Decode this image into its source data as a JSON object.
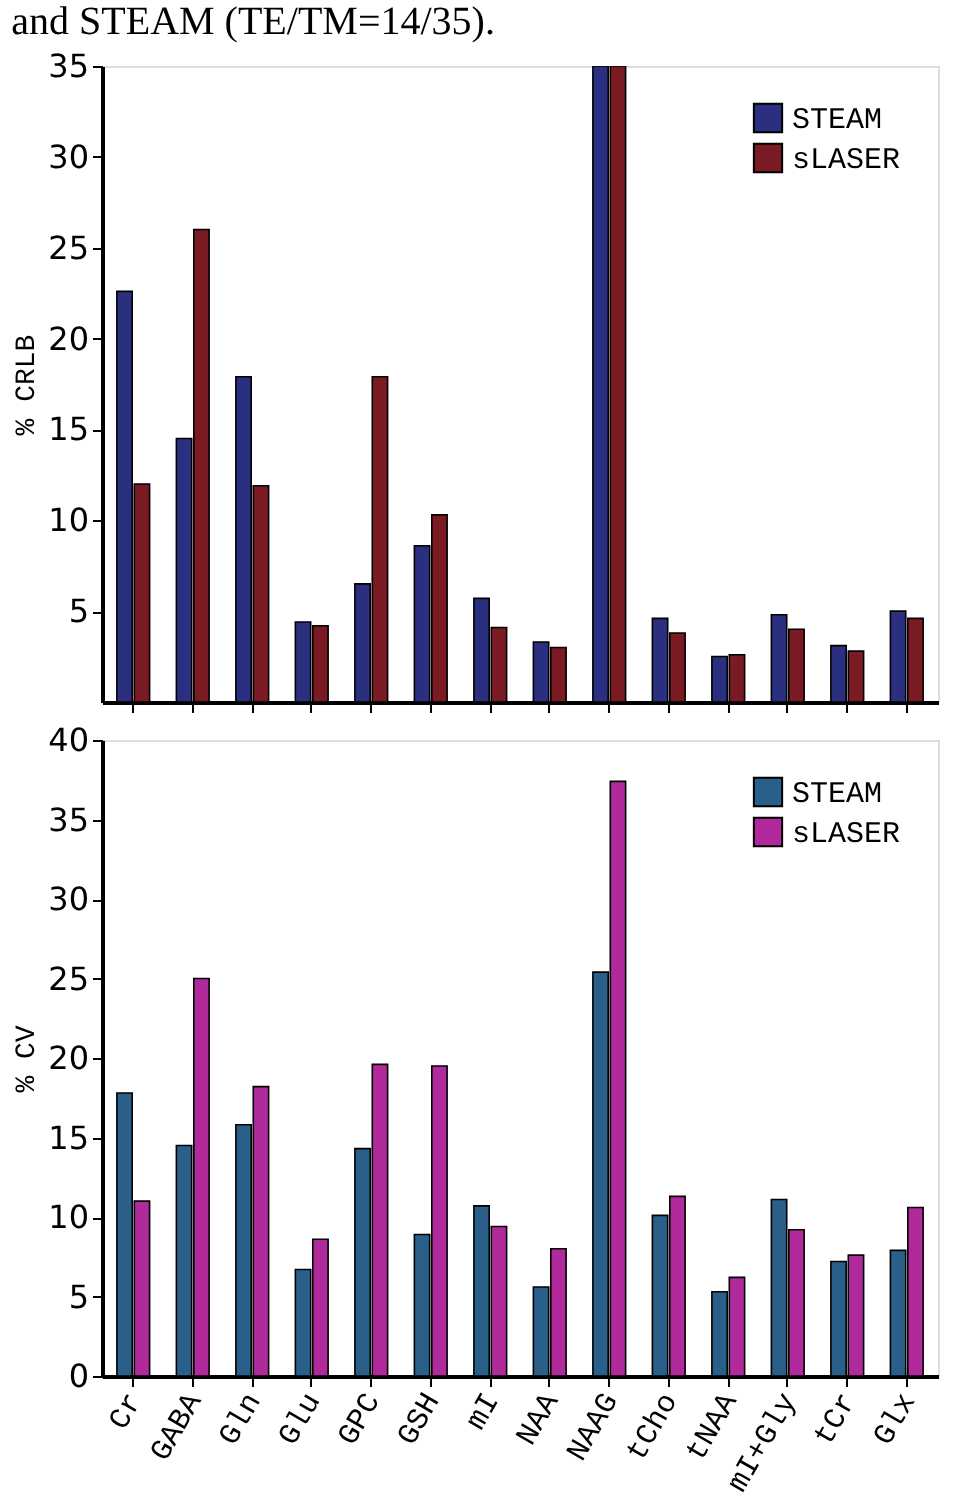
{
  "chart_data": [
    {
      "type": "bar",
      "title": "and STEAM (TE/TM=14/35).",
      "ylabel": "% CRLB",
      "categories": [
        null,
        null,
        null,
        null,
        null,
        null,
        null,
        null,
        null,
        null,
        null,
        null,
        null,
        null
      ],
      "series": [
        {
          "name": "STEAM",
          "color": "#2b2f80",
          "values": [
            22.6,
            14.5,
            17.9,
            4.4,
            6.5,
            8.6,
            5.7,
            3.3,
            35,
            4.6,
            2.5,
            4.8,
            3.1,
            5.0
          ]
        },
        {
          "name": "sLASER",
          "color": "#7a1a22",
          "values": [
            12.0,
            26.0,
            11.9,
            4.2,
            17.9,
            10.3,
            4.1,
            3.0,
            35,
            3.8,
            2.6,
            4.0,
            2.8,
            4.6
          ]
        }
      ],
      "ylim": [
        0,
        35
      ],
      "yticks": [
        5,
        10,
        15,
        20,
        25,
        30,
        35
      ],
      "legend": "top right",
      "grid": false,
      "tick_labels": "y"
    },
    {
      "type": "bar",
      "ylabel": "% CV",
      "categories": [
        "Cr",
        "GABA",
        "Gln",
        "Glu",
        "GPC",
        "GSH",
        "mI",
        "NAA",
        "NAAG",
        "tCho",
        "tNAA",
        "mI+Gly",
        "tCr",
        "Glx"
      ],
      "series": [
        {
          "name": "STEAM",
          "color": "#2a5f8a",
          "values": [
            17.8,
            14.5,
            15.8,
            6.7,
            14.3,
            8.9,
            10.7,
            5.6,
            25.4,
            10.1,
            5.3,
            11.1,
            7.2,
            7.9
          ]
        },
        {
          "name": "sLASER",
          "color": "#b02a9c",
          "values": [
            11.0,
            25.0,
            18.2,
            8.6,
            19.6,
            19.5,
            9.4,
            8.0,
            37.4,
            11.3,
            6.2,
            9.2,
            7.6,
            10.6
          ]
        }
      ],
      "ylim": [
        0,
        40
      ],
      "yticks": [
        0,
        5,
        10,
        15,
        20,
        25,
        30,
        35,
        40
      ],
      "legend": "top right",
      "grid": false
    }
  ]
}
